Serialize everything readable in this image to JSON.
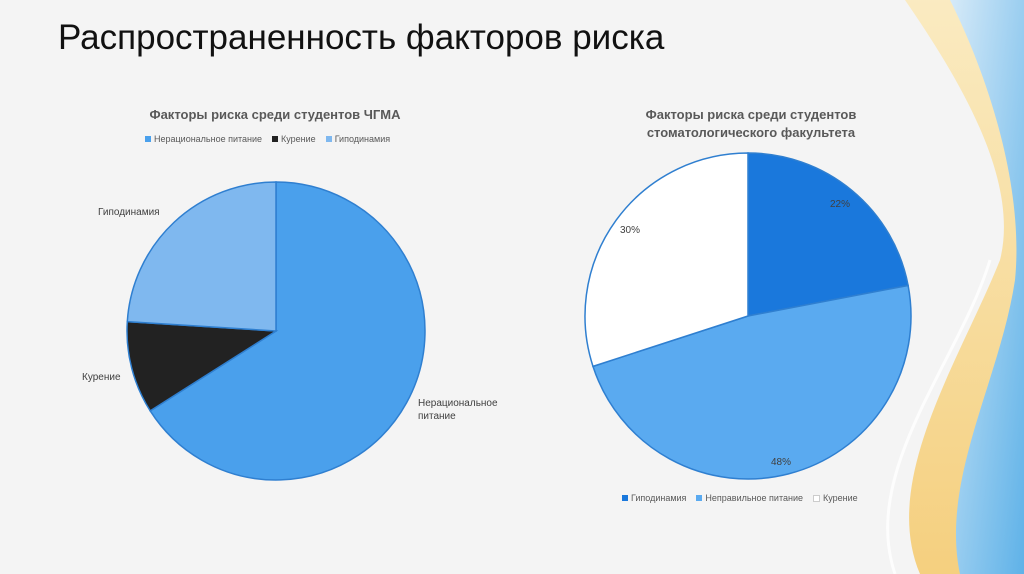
{
  "slide": {
    "title": "Распространенность факторов риска"
  },
  "colors": {
    "blue_light": "#8ec5f5",
    "blue_mid": "#4aa0ec",
    "blue_dark": "#0a64c8",
    "black": "#222222",
    "white": "#ffffff"
  },
  "chart_data": [
    {
      "type": "pie",
      "title": "Факторы риска среди студентов ЧГМА",
      "legend": [
        "Нерациональное питание",
        "Курение",
        "Гиподинамия"
      ],
      "legend_position": "top",
      "slices": [
        {
          "label": "Нерациональное питание",
          "display_label": "Нерациональное питание",
          "value": 66,
          "color": "#4aa0ec"
        },
        {
          "label": "Курение",
          "display_label": "Курение",
          "value": 10,
          "color": "#222222"
        },
        {
          "label": "Гиподинамия",
          "display_label": "Гиподинамия",
          "value": 24,
          "color": "#7fb8ef"
        }
      ]
    },
    {
      "type": "pie",
      "title": "Факторы риска среди студентов стоматологического факультета",
      "legend": [
        "Гиподинамия",
        "Неправильное питание",
        "Курение"
      ],
      "legend_position": "bottom",
      "slices": [
        {
          "label": "Гиподинамия",
          "value": 22,
          "display_label": "22%",
          "color": "#1a78dc"
        },
        {
          "label": "Неправильное питание",
          "value": 48,
          "display_label": "48%",
          "color": "#5aaaf0"
        },
        {
          "label": "Курение",
          "value": 30,
          "display_label": "30%",
          "color": "#ffffff"
        }
      ]
    }
  ]
}
